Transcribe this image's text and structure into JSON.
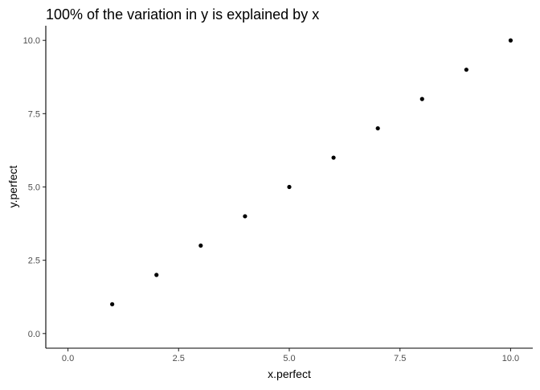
{
  "chart_data": {
    "type": "scatter",
    "title": "100% of the variation in y is explained by x",
    "xlabel": "x.perfect",
    "ylabel": "y.perfect",
    "xlim": [
      -0.5,
      10.5
    ],
    "ylim": [
      -0.5,
      10.5
    ],
    "x_ticks": [
      0,
      2.5,
      5,
      7.5,
      10
    ],
    "x_tick_labels": [
      "0.0",
      "2.5",
      "5.0",
      "7.5",
      "10.0"
    ],
    "y_ticks": [
      0,
      2.5,
      5,
      7.5,
      10
    ],
    "y_tick_labels": [
      "0.0",
      "2.5",
      "5.0",
      "7.5",
      "10.0"
    ],
    "grid": false,
    "point_color": "#000000",
    "x": [
      1,
      2,
      3,
      4,
      5,
      6,
      7,
      8,
      9,
      10
    ],
    "y": [
      1,
      2,
      3,
      4,
      5,
      6,
      7,
      8,
      9,
      10
    ]
  }
}
